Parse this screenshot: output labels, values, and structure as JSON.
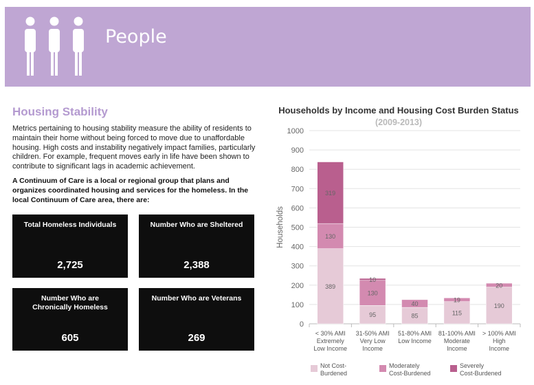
{
  "banner": {
    "title": "People",
    "background": "#bfa6d3",
    "icon": "people-icon"
  },
  "housing": {
    "title": "Housing Stability",
    "intro": "Metrics pertaining to housing stability measure the ability of residents to maintain their home without being forced to move due to unaffordable housing. High costs and instability negatively impact families, particularly children. For example, frequent moves early in life have been shown to contribute to significant lags in academic achievement.",
    "coc_text": "A Continuum of Care is a local or regional group that plans and organizes coordinated housing and services for the homeless. In the local Continuum of Care area, there are:"
  },
  "stats": [
    {
      "label": "Total Homeless Individuals",
      "value": "2,725"
    },
    {
      "label": "Number Who are Sheltered",
      "value": "2,388"
    },
    {
      "label": "Number Who are Chronically Homeless",
      "value": "605"
    },
    {
      "label": "Number Who are Veterans",
      "value": "269"
    }
  ],
  "chart_data": {
    "type": "bar",
    "stacked": true,
    "title": "Households by Income and Housing Cost Burden Status",
    "subtitle": "(2009-2013)",
    "ylabel": "Households",
    "ylim": [
      0,
      1000
    ],
    "yticks": [
      0,
      100,
      200,
      300,
      400,
      500,
      600,
      700,
      800,
      900,
      1000
    ],
    "grid": true,
    "legend_position": "bottom",
    "categories": [
      [
        "< 30% AMI",
        "Extremely",
        "Low Income"
      ],
      [
        "31-50% AMI",
        "Very Low",
        "Income"
      ],
      [
        "51-80% AMI",
        "Low Income"
      ],
      [
        "81-100% AMI",
        "Moderate",
        "Income"
      ],
      [
        "> 100% AMI",
        "High",
        "Income"
      ]
    ],
    "series": [
      {
        "name": [
          "Not Cost-",
          "Burdened"
        ],
        "color": "#e6cad7",
        "values": [
          389,
          95,
          85,
          115,
          190
        ]
      },
      {
        "name": [
          "Moderately",
          "Cost-Burdened"
        ],
        "color": "#d38ab0",
        "values": [
          130,
          130,
          40,
          19,
          20
        ]
      },
      {
        "name": [
          "Severely",
          "Cost-Burdened"
        ],
        "color": "#b95f8e",
        "values": [
          319,
          10,
          0,
          0,
          0
        ]
      }
    ]
  }
}
